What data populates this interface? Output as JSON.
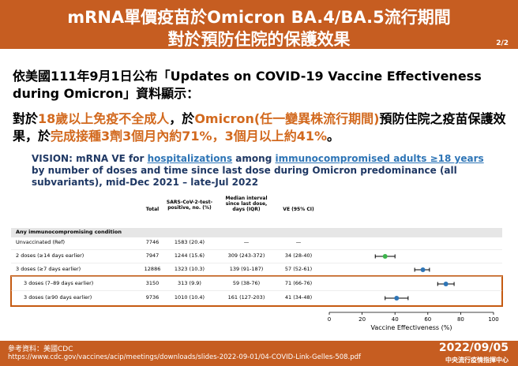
{
  "header": {
    "title_lines": [
      "mRNA單價疫苗於Omicron BA.4/BA.5流行期間",
      "對於預防住院的保護效果"
    ],
    "page": "2/2"
  },
  "intro": {
    "segments": [
      {
        "text": "依美國111年9月1日公布「Updates on COVID-19 Vaccine Effectiveness during Omicron」資料顯示：",
        "color": "#000000"
      }
    ]
  },
  "finding": {
    "segments": [
      {
        "text": "對於",
        "color": "#000000"
      },
      {
        "text": "18歲以上免疫不全成人",
        "color": "#d2691e"
      },
      {
        "text": "，於",
        "color": "#000000"
      },
      {
        "text": "Omicron(任一變異株流行期間)",
        "color": "#d2691e"
      },
      {
        "text": "預防住院之疫苗保護效果，於",
        "color": "#000000"
      },
      {
        "text": "完成接種3劑3個月內約71%，3個月以上約41%",
        "color": "#d2691e"
      },
      {
        "text": "。",
        "color": "#000000"
      }
    ]
  },
  "vision": {
    "segments": [
      {
        "text": "VISION: mRNA VE for ",
        "underline": false
      },
      {
        "text": "hospitalizations",
        "underline": true
      },
      {
        "text": " among ",
        "underline": false
      },
      {
        "text": "immunocompromised adults ≥18 years",
        "underline": true
      },
      {
        "text": " by number of doses and time since last dose during Omicron predominance (all subvariants), mid-Dec 2021 – late-Jul 2022",
        "underline": false
      }
    ]
  },
  "table": {
    "columns": [
      "Total",
      "SARS-CoV-2-test-positive, no. (%)",
      "Median interval since last dose, days (IQR)",
      "VE  (95% CI)"
    ],
    "group": "Any immunocompromising condition",
    "rows": [
      {
        "label": "Unvaccinated (Ref)",
        "total": "7746",
        "positive": "1583 (20.4)",
        "interval": "—",
        "ve": "—"
      },
      {
        "label": "2 doses (≥14 days earlier)",
        "total": "7947",
        "positive": "1244 (15.6)",
        "interval": "309 (243-372)",
        "ve": "34 (28-40)",
        "point": {
          "value": 34,
          "low": 28,
          "high": 40,
          "color": "#3cb44b"
        }
      },
      {
        "label": "3 doses (≥7 days earlier)",
        "total": "12886",
        "positive": "1323 (10.3)",
        "interval": "139 (91-187)",
        "ve": "57 (52-61)",
        "point": {
          "value": 57,
          "low": 52,
          "high": 61,
          "color": "#2e75b6"
        }
      },
      {
        "label": "3 doses (7–89 days earlier)",
        "total": "3150",
        "positive": "313 (9.9)",
        "interval": "59 (38-76)",
        "ve": "71 (66-76)",
        "point": {
          "value": 71,
          "low": 66,
          "high": 76,
          "color": "#2e75b6"
        }
      },
      {
        "label": "3 doses (≥90 days earlier)",
        "total": "9736",
        "positive": "1010 (10.4)",
        "interval": "161 (127-203)",
        "ve": "41 (34-48)",
        "point": {
          "value": 41,
          "low": 34,
          "high": 48,
          "color": "#2e75b6"
        }
      }
    ]
  },
  "plot": {
    "xlim": [
      0,
      100
    ],
    "xticks": [
      0,
      20,
      40,
      60,
      80,
      100
    ],
    "xlabel": "Vaccine Effectiveness (%)"
  },
  "footer": {
    "source": "參考資料：美國CDC",
    "url": "https://www.cdc.gov/vaccines/acip/meetings/downloads/slides-2022-09-01/04-COVID-Link-Gelles-508.pdf",
    "date": "2022/09/05",
    "org": "中央流行疫情指揮中心"
  }
}
